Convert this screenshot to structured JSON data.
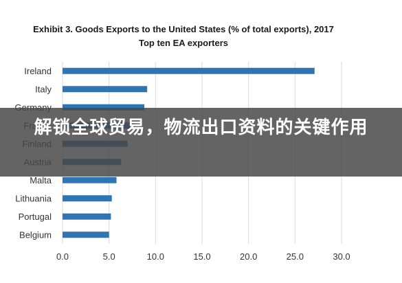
{
  "chart_data": {
    "type": "bar",
    "orientation": "horizontal",
    "title": "Exhibit 3. Goods Exports to the United States (% of total exports), 2017",
    "subtitle": "Top ten EA exporters",
    "categories": [
      "Ireland",
      "Italy",
      "Germany",
      "France",
      "Finland",
      "Austria",
      "Malta",
      "Lithuania",
      "Portugal",
      "Belgium"
    ],
    "values": [
      27.1,
      9.1,
      8.8,
      7.8,
      7.0,
      6.3,
      5.8,
      5.3,
      5.2,
      5.0
    ],
    "xticks": [
      "0.0",
      "5.0",
      "10.0",
      "15.0",
      "20.0",
      "25.0",
      "30.0"
    ],
    "xlim": [
      0,
      30
    ],
    "bar_color": "#2e75b6",
    "grid": "vertical"
  },
  "overlay": {
    "text": "解锁全球贸易，物流出口资料的关键作用"
  }
}
